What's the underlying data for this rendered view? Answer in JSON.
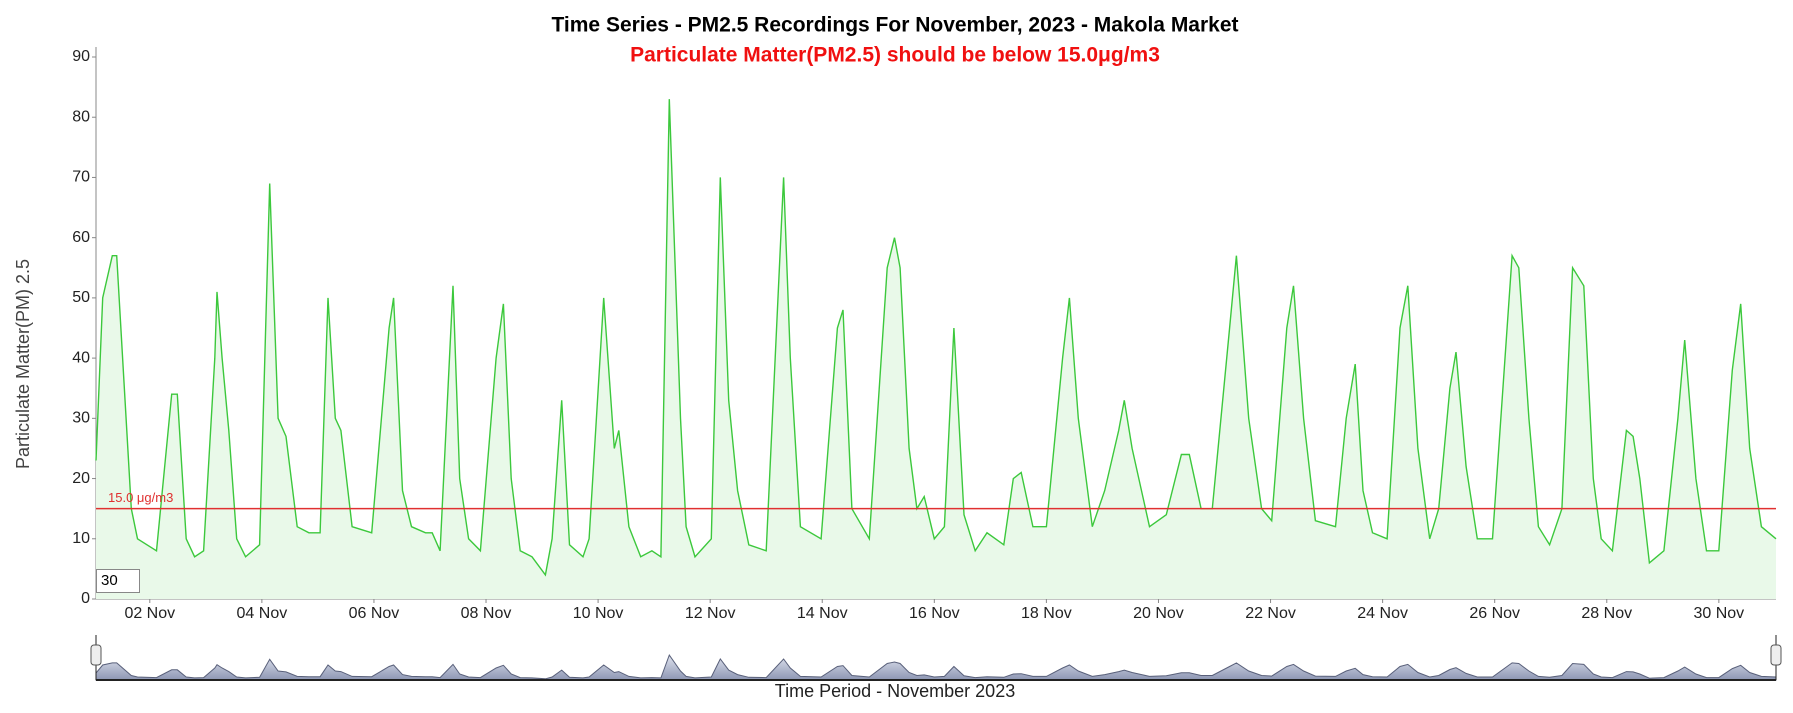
{
  "chart_data": {
    "type": "area",
    "title": "Time Series - PM2.5 Recordings For November, 2023 - Makola Market",
    "subtitle": "Particulate Matter(PM2.5) should be below 15.0μg/m3",
    "y_label": "Particulate Matter(PM) 2.5",
    "x_label": "Time Period - November 2023",
    "color": "#3cc83c",
    "fill_color": "#e9f9e9",
    "rolling_period": 30,
    "threshold": {
      "value": 15,
      "label": "15.0 μg/m3",
      "color": "#e03030"
    },
    "xlim": [
      1.04,
      31.02
    ],
    "ylim": [
      0,
      90
    ],
    "yticks": [
      0,
      10,
      20,
      30,
      40,
      50,
      60,
      70,
      80,
      90
    ],
    "xticks": [
      {
        "value": 2,
        "label": "02 Nov"
      },
      {
        "value": 4,
        "label": "04 Nov"
      },
      {
        "value": 6,
        "label": "06 Nov"
      },
      {
        "value": 8,
        "label": "08 Nov"
      },
      {
        "value": 10,
        "label": "10 Nov"
      },
      {
        "value": 12,
        "label": "12 Nov"
      },
      {
        "value": 14,
        "label": "14 Nov"
      },
      {
        "value": 16,
        "label": "16 Nov"
      },
      {
        "value": 18,
        "label": "18 Nov"
      },
      {
        "value": 20,
        "label": "20 Nov"
      },
      {
        "value": 22,
        "label": "22 Nov"
      },
      {
        "value": 24,
        "label": "24 Nov"
      },
      {
        "value": 26,
        "label": "26 Nov"
      },
      {
        "value": 28,
        "label": "28 Nov"
      },
      {
        "value": 30,
        "label": "30 Nov"
      }
    ],
    "x": [
      1.04,
      1.16,
      1.33,
      1.41,
      1.67,
      1.78,
      2.12,
      2.39,
      2.49,
      2.65,
      2.8,
      2.96,
      3.16,
      3.2,
      3.29,
      3.41,
      3.55,
      3.71,
      3.96,
      4.14,
      4.29,
      4.43,
      4.63,
      4.84,
      5.04,
      5.18,
      5.31,
      5.41,
      5.61,
      5.96,
      6.27,
      6.35,
      6.51,
      6.67,
      6.92,
      7.04,
      7.18,
      7.41,
      7.53,
      7.69,
      7.9,
      8.18,
      8.31,
      8.45,
      8.61,
      8.82,
      9.06,
      9.18,
      9.35,
      9.49,
      9.73,
      9.84,
      10.1,
      10.29,
      10.37,
      10.55,
      10.76,
      10.96,
      11.12,
      11.27,
      11.47,
      11.57,
      11.73,
      12.02,
      12.18,
      12.33,
      12.49,
      12.69,
      13.0,
      13.31,
      13.43,
      13.61,
      13.98,
      14.27,
      14.37,
      14.53,
      14.84,
      15.16,
      15.29,
      15.39,
      15.55,
      15.69,
      15.82,
      16.0,
      16.18,
      16.35,
      16.53,
      16.73,
      16.94,
      17.24,
      17.41,
      17.55,
      17.76,
      18.0,
      18.29,
      18.41,
      18.57,
      18.82,
      19.04,
      19.29,
      19.39,
      19.53,
      19.84,
      20.14,
      20.41,
      20.55,
      20.76,
      20.96,
      21.27,
      21.39,
      21.61,
      21.84,
      22.02,
      22.29,
      22.41,
      22.59,
      22.8,
      23.16,
      23.35,
      23.51,
      23.65,
      23.82,
      24.08,
      24.31,
      24.45,
      24.63,
      24.84,
      25.0,
      25.2,
      25.31,
      25.49,
      25.69,
      25.96,
      26.31,
      26.43,
      26.61,
      26.78,
      26.98,
      27.2,
      27.39,
      27.59,
      27.76,
      27.9,
      28.1,
      28.35,
      28.47,
      28.59,
      28.76,
      29.02,
      29.27,
      29.39,
      29.59,
      29.78,
      30.0,
      30.24,
      30.39,
      30.55,
      30.76,
      31.02
    ],
    "values": [
      23,
      50,
      57,
      57,
      15,
      10,
      8,
      34,
      34,
      10,
      7,
      8,
      40,
      51,
      40,
      28,
      10,
      7,
      9,
      69,
      30,
      27,
      12,
      11,
      11,
      50,
      30,
      28,
      12,
      11,
      45,
      50,
      18,
      12,
      11,
      11,
      8,
      52,
      20,
      10,
      8,
      40,
      49,
      20,
      8,
      7,
      4,
      10,
      33,
      9,
      7,
      10,
      50,
      25,
      28,
      12,
      7,
      8,
      7,
      83,
      30,
      12,
      7,
      10,
      70,
      33,
      18,
      9,
      8,
      70,
      40,
      12,
      10,
      45,
      48,
      15,
      10,
      55,
      60,
      55,
      25,
      15,
      17,
      10,
      12,
      45,
      14,
      8,
      11,
      9,
      20,
      21,
      12,
      12,
      40,
      50,
      30,
      12,
      18,
      28,
      33,
      25,
      12,
      14,
      24,
      24,
      15,
      15,
      45,
      57,
      30,
      15,
      13,
      45,
      52,
      30,
      13,
      12,
      30,
      39,
      18,
      11,
      10,
      45,
      52,
      25,
      10,
      15,
      35,
      41,
      22,
      10,
      10,
      57,
      55,
      30,
      12,
      9,
      15,
      55,
      52,
      20,
      10,
      8,
      28,
      27,
      20,
      6,
      8,
      30,
      43,
      20,
      8,
      8,
      38,
      49,
      25,
      12,
      10
    ]
  }
}
